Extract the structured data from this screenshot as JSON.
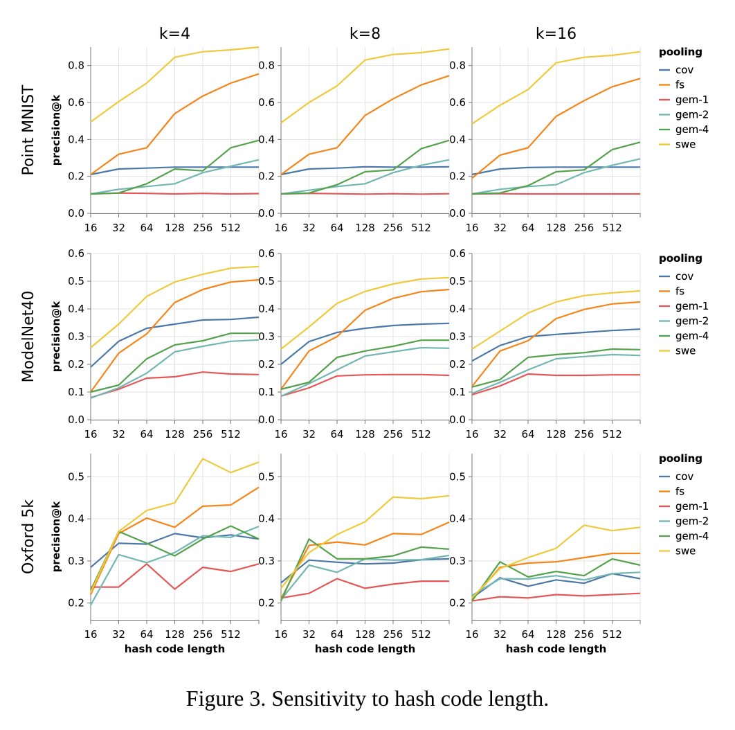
{
  "caption": "Figure 3. Sensitivity to hash code length.",
  "palette": {
    "cov": "#4c78a8",
    "fs": "#f58518",
    "gem-1": "#e45756",
    "gem-2": "#72b7b2",
    "gem-4": "#54a24b",
    "swe": "#eeca3b"
  },
  "chart_data": [
    {
      "type": "line",
      "row_label": "Point MNIST",
      "col_label": "k=4",
      "ylabel": "precision@k",
      "xlabel": "",
      "x_tick_labels": [
        "16",
        "32",
        "64",
        "128",
        "256",
        "512"
      ],
      "x": [
        16,
        32,
        64,
        128,
        256,
        512,
        1024
      ],
      "y_ticks": [
        0.0,
        0.2,
        0.4,
        0.6,
        0.8
      ],
      "ylim": [
        0,
        0.9
      ],
      "legend_title": "pooling",
      "grid": true,
      "series": [
        {
          "name": "cov",
          "values": [
            0.21,
            0.24,
            0.245,
            0.25,
            0.25,
            0.25,
            0.25
          ]
        },
        {
          "name": "fs",
          "values": [
            0.21,
            0.32,
            0.355,
            0.54,
            0.635,
            0.705,
            0.755
          ]
        },
        {
          "name": "gem-1",
          "values": [
            0.105,
            0.11,
            0.108,
            0.105,
            0.108,
            0.105,
            0.107
          ]
        },
        {
          "name": "gem-2",
          "values": [
            0.105,
            0.13,
            0.145,
            0.16,
            0.22,
            0.255,
            0.29
          ]
        },
        {
          "name": "gem-4",
          "values": [
            0.105,
            0.11,
            0.16,
            0.24,
            0.23,
            0.355,
            0.395
          ]
        },
        {
          "name": "swe",
          "values": [
            0.495,
            0.605,
            0.705,
            0.845,
            0.875,
            0.885,
            0.9
          ]
        }
      ]
    },
    {
      "type": "line",
      "row_label": "Point MNIST",
      "col_label": "k=8",
      "ylabel": "",
      "xlabel": "",
      "x_tick_labels": [
        "16",
        "32",
        "64",
        "128",
        "256",
        "512"
      ],
      "x": [
        16,
        32,
        64,
        128,
        256,
        512,
        1024
      ],
      "y_ticks": [
        0.0,
        0.2,
        0.4,
        0.6,
        0.8
      ],
      "ylim": [
        0,
        0.9
      ],
      "legend_title": "",
      "grid": true,
      "series": [
        {
          "name": "cov",
          "values": [
            0.21,
            0.24,
            0.245,
            0.252,
            0.25,
            0.25,
            0.252
          ]
        },
        {
          "name": "fs",
          "values": [
            0.21,
            0.32,
            0.355,
            0.53,
            0.62,
            0.695,
            0.745
          ]
        },
        {
          "name": "gem-1",
          "values": [
            0.105,
            0.108,
            0.106,
            0.104,
            0.106,
            0.104,
            0.106
          ]
        },
        {
          "name": "gem-2",
          "values": [
            0.105,
            0.125,
            0.145,
            0.16,
            0.22,
            0.26,
            0.29
          ]
        },
        {
          "name": "gem-4",
          "values": [
            0.105,
            0.11,
            0.155,
            0.225,
            0.235,
            0.35,
            0.395
          ]
        },
        {
          "name": "swe",
          "values": [
            0.49,
            0.6,
            0.69,
            0.83,
            0.86,
            0.87,
            0.89
          ]
        }
      ]
    },
    {
      "type": "line",
      "row_label": "Point MNIST",
      "col_label": "k=16",
      "ylabel": "",
      "xlabel": "",
      "x_tick_labels": [
        "16",
        "32",
        "64",
        "128",
        "256",
        "512"
      ],
      "x": [
        16,
        32,
        64,
        128,
        256,
        512,
        1024
      ],
      "y_ticks": [
        0.0,
        0.2,
        0.4,
        0.6,
        0.8
      ],
      "ylim": [
        0,
        0.9
      ],
      "legend_title": "pooling",
      "grid": true,
      "series": [
        {
          "name": "cov",
          "values": [
            0.21,
            0.24,
            0.248,
            0.25,
            0.25,
            0.25,
            0.25
          ]
        },
        {
          "name": "fs",
          "values": [
            0.19,
            0.315,
            0.355,
            0.525,
            0.61,
            0.685,
            0.73
          ]
        },
        {
          "name": "gem-1",
          "values": [
            0.105,
            0.106,
            0.105,
            0.105,
            0.105,
            0.105,
            0.105
          ]
        },
        {
          "name": "gem-2",
          "values": [
            0.105,
            0.13,
            0.145,
            0.155,
            0.22,
            0.26,
            0.295
          ]
        },
        {
          "name": "gem-4",
          "values": [
            0.105,
            0.11,
            0.15,
            0.225,
            0.235,
            0.345,
            0.385
          ]
        },
        {
          "name": "swe",
          "values": [
            0.485,
            0.585,
            0.67,
            0.815,
            0.845,
            0.855,
            0.875
          ]
        }
      ]
    },
    {
      "type": "line",
      "row_label": "ModelNet40",
      "col_label": "",
      "ylabel": "precision@k",
      "xlabel": "",
      "x_tick_labels": [
        "16",
        "32",
        "64",
        "128",
        "256",
        "512"
      ],
      "x": [
        16,
        32,
        64,
        128,
        256,
        512,
        1024
      ],
      "y_ticks": [
        0.0,
        0.1,
        0.2,
        0.3,
        0.4,
        0.5,
        0.6
      ],
      "ylim": [
        0,
        0.6
      ],
      "legend_title": "pooling",
      "grid": true,
      "series": [
        {
          "name": "cov",
          "values": [
            0.19,
            0.283,
            0.33,
            0.345,
            0.36,
            0.362,
            0.37
          ]
        },
        {
          "name": "fs",
          "values": [
            0.1,
            0.24,
            0.31,
            0.423,
            0.47,
            0.497,
            0.505
          ]
        },
        {
          "name": "gem-1",
          "values": [
            0.08,
            0.11,
            0.15,
            0.155,
            0.172,
            0.165,
            0.163
          ]
        },
        {
          "name": "gem-2",
          "values": [
            0.078,
            0.115,
            0.168,
            0.245,
            0.265,
            0.283,
            0.288
          ]
        },
        {
          "name": "gem-4",
          "values": [
            0.1,
            0.125,
            0.22,
            0.27,
            0.285,
            0.312,
            0.312
          ]
        },
        {
          "name": "swe",
          "values": [
            0.26,
            0.345,
            0.445,
            0.497,
            0.525,
            0.547,
            0.553
          ]
        }
      ]
    },
    {
      "type": "line",
      "row_label": "ModelNet40",
      "col_label": "",
      "ylabel": "",
      "xlabel": "",
      "x_tick_labels": [
        "16",
        "32",
        "64",
        "128",
        "256",
        "512"
      ],
      "x": [
        16,
        32,
        64,
        128,
        256,
        512,
        1024
      ],
      "y_ticks": [
        0.0,
        0.1,
        0.2,
        0.3,
        0.4,
        0.5,
        0.6
      ],
      "ylim": [
        0,
        0.6
      ],
      "legend_title": "",
      "grid": true,
      "series": [
        {
          "name": "cov",
          "values": [
            0.2,
            0.282,
            0.315,
            0.33,
            0.34,
            0.345,
            0.348
          ]
        },
        {
          "name": "fs",
          "values": [
            0.11,
            0.248,
            0.3,
            0.395,
            0.438,
            0.462,
            0.47
          ]
        },
        {
          "name": "gem-1",
          "values": [
            0.085,
            0.115,
            0.158,
            0.162,
            0.163,
            0.163,
            0.16
          ]
        },
        {
          "name": "gem-2",
          "values": [
            0.085,
            0.13,
            0.18,
            0.23,
            0.245,
            0.26,
            0.258
          ]
        },
        {
          "name": "gem-4",
          "values": [
            0.11,
            0.135,
            0.225,
            0.248,
            0.265,
            0.287,
            0.287
          ]
        },
        {
          "name": "swe",
          "values": [
            0.255,
            0.335,
            0.42,
            0.463,
            0.49,
            0.508,
            0.513
          ]
        }
      ]
    },
    {
      "type": "line",
      "row_label": "ModelNet40",
      "col_label": "",
      "ylabel": "",
      "xlabel": "",
      "x_tick_labels": [
        "16",
        "32",
        "64",
        "128",
        "256",
        "512"
      ],
      "x": [
        16,
        32,
        64,
        128,
        256,
        512,
        1024
      ],
      "y_ticks": [
        0.0,
        0.1,
        0.2,
        0.3,
        0.4,
        0.5,
        0.6
      ],
      "ylim": [
        0,
        0.6
      ],
      "legend_title": "pooling",
      "grid": true,
      "series": [
        {
          "name": "cov",
          "values": [
            0.212,
            0.268,
            0.3,
            0.308,
            0.315,
            0.322,
            0.327
          ]
        },
        {
          "name": "fs",
          "values": [
            0.12,
            0.248,
            0.285,
            0.365,
            0.398,
            0.418,
            0.425
          ]
        },
        {
          "name": "gem-1",
          "values": [
            0.09,
            0.122,
            0.165,
            0.16,
            0.16,
            0.162,
            0.162
          ]
        },
        {
          "name": "gem-2",
          "values": [
            0.095,
            0.135,
            0.18,
            0.22,
            0.228,
            0.235,
            0.232
          ]
        },
        {
          "name": "gem-4",
          "values": [
            0.118,
            0.145,
            0.225,
            0.235,
            0.242,
            0.255,
            0.253
          ]
        },
        {
          "name": "swe",
          "values": [
            0.255,
            0.32,
            0.385,
            0.425,
            0.448,
            0.458,
            0.465
          ]
        }
      ]
    },
    {
      "type": "line",
      "row_label": "Oxford 5k",
      "col_label": "",
      "ylabel": "precision@k",
      "xlabel": "hash code length",
      "x_tick_labels": [
        "16",
        "32",
        "64",
        "128",
        "256",
        "512"
      ],
      "x": [
        16,
        32,
        64,
        128,
        256,
        512,
        1024
      ],
      "y_ticks": [
        0.2,
        0.3,
        0.4,
        0.5
      ],
      "ylim": [
        0.16,
        0.555
      ],
      "legend_title": "pooling",
      "grid": true,
      "series": [
        {
          "name": "cov",
          "values": [
            0.285,
            0.342,
            0.34,
            0.365,
            0.355,
            0.362,
            0.352
          ]
        },
        {
          "name": "fs",
          "values": [
            0.22,
            0.365,
            0.402,
            0.38,
            0.43,
            0.433,
            0.475
          ]
        },
        {
          "name": "gem-1",
          "values": [
            0.238,
            0.238,
            0.293,
            0.233,
            0.285,
            0.275,
            0.293
          ]
        },
        {
          "name": "gem-2",
          "values": [
            0.195,
            0.315,
            0.296,
            0.32,
            0.36,
            0.356,
            0.382
          ]
        },
        {
          "name": "gem-4",
          "values": [
            0.23,
            0.37,
            0.342,
            0.312,
            0.352,
            0.383,
            0.352
          ]
        },
        {
          "name": "swe",
          "values": [
            0.225,
            0.37,
            0.42,
            0.438,
            0.543,
            0.51,
            0.535
          ]
        }
      ]
    },
    {
      "type": "line",
      "row_label": "Oxford 5k",
      "col_label": "",
      "ylabel": "",
      "xlabel": "hash code length",
      "x_tick_labels": [
        "16",
        "32",
        "64",
        "128",
        "256",
        "512"
      ],
      "x": [
        16,
        32,
        64,
        128,
        256,
        512,
        1024
      ],
      "y_ticks": [
        0.2,
        0.3,
        0.4,
        0.5
      ],
      "ylim": [
        0.16,
        0.555
      ],
      "legend_title": "",
      "grid": true,
      "series": [
        {
          "name": "cov",
          "values": [
            0.248,
            0.302,
            0.297,
            0.293,
            0.295,
            0.303,
            0.305
          ]
        },
        {
          "name": "fs",
          "values": [
            0.21,
            0.337,
            0.345,
            0.338,
            0.365,
            0.363,
            0.392
          ]
        },
        {
          "name": "gem-1",
          "values": [
            0.212,
            0.223,
            0.258,
            0.235,
            0.245,
            0.252,
            0.252
          ]
        },
        {
          "name": "gem-2",
          "values": [
            0.208,
            0.29,
            0.273,
            0.305,
            0.302,
            0.303,
            0.313
          ]
        },
        {
          "name": "gem-4",
          "values": [
            0.205,
            0.352,
            0.305,
            0.305,
            0.312,
            0.333,
            0.328
          ]
        },
        {
          "name": "swe",
          "values": [
            0.235,
            0.32,
            0.363,
            0.393,
            0.452,
            0.448,
            0.455
          ]
        }
      ]
    },
    {
      "type": "line",
      "row_label": "Oxford 5k",
      "col_label": "",
      "ylabel": "",
      "xlabel": "hash code length",
      "x_tick_labels": [
        "16",
        "32",
        "64",
        "128",
        "256",
        "512"
      ],
      "x": [
        16,
        32,
        64,
        128,
        256,
        512,
        1024
      ],
      "y_ticks": [
        0.2,
        0.3,
        0.4,
        0.5
      ],
      "ylim": [
        0.16,
        0.555
      ],
      "legend_title": "pooling",
      "grid": true,
      "series": [
        {
          "name": "cov",
          "values": [
            0.212,
            0.26,
            0.24,
            0.255,
            0.247,
            0.27,
            0.258
          ]
        },
        {
          "name": "fs",
          "values": [
            0.208,
            0.285,
            0.295,
            0.298,
            0.308,
            0.318,
            0.318
          ]
        },
        {
          "name": "gem-1",
          "values": [
            0.205,
            0.215,
            0.212,
            0.22,
            0.217,
            0.22,
            0.223
          ]
        },
        {
          "name": "gem-2",
          "values": [
            0.218,
            0.258,
            0.257,
            0.265,
            0.255,
            0.27,
            0.273
          ]
        },
        {
          "name": "gem-4",
          "values": [
            0.205,
            0.298,
            0.262,
            0.275,
            0.265,
            0.305,
            0.29
          ]
        },
        {
          "name": "swe",
          "values": [
            0.212,
            0.282,
            0.308,
            0.33,
            0.385,
            0.372,
            0.38
          ]
        }
      ]
    }
  ]
}
